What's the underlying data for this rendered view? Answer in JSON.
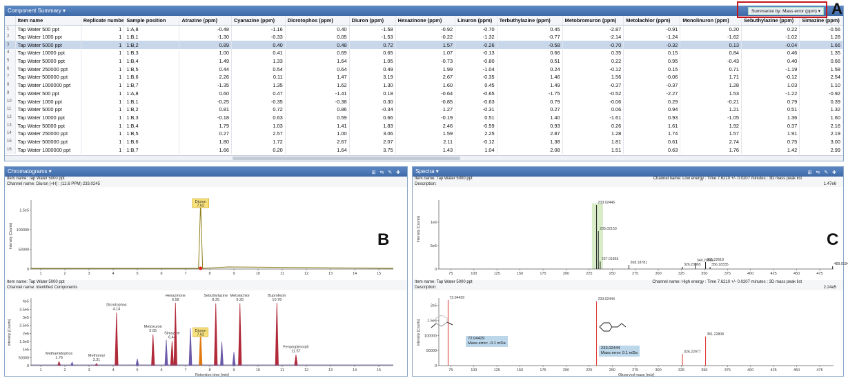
{
  "top": {
    "title": "Component Summary ▾",
    "summarize_label": "Summarize by: Mass error (ppm) ▾",
    "callout": "A",
    "columns": [
      "",
      "Item name",
      "Replicate number",
      "Sample position",
      "Atrazine (ppm)",
      "Cyanazine (ppm)",
      "Dicrotophos (ppm)",
      "Diuron (ppm)",
      "Hexazinone (ppm)",
      "Linuron (ppm)",
      "Terbuthylazine (ppm)",
      "Metobromuron (ppm)",
      "Metolachlor (ppm)",
      "Monolinuron (ppm)",
      "Sebuthylazine (ppm)",
      "Simazine (ppm)"
    ],
    "rows": [
      [
        "1",
        "Tap Water 500 ppt",
        "1",
        "1:A,8",
        "-0.48",
        "-1.16",
        "0.40",
        "-1.58",
        "-0.92",
        "-0.70",
        "0.45",
        "-2.87",
        "-0.91",
        "0.20",
        "0.22",
        "-0.56"
      ],
      [
        "2",
        "Tap Water 1000 ppt",
        "1",
        "1:B,1",
        "-1.30",
        "-0.33",
        "0.05",
        "-1.53",
        "-0.22",
        "-1.32",
        "-0.77",
        "-2.14",
        "-1.24",
        "-1.62",
        "-1.02",
        "1.28"
      ],
      [
        "3",
        "Tap Water 5000 ppt",
        "1",
        "1:B,2",
        "0.89",
        "0.40",
        "0.48",
        "0.72",
        "1.57",
        "-0.26",
        "-0.58",
        "-0.70",
        "-0.32",
        "0.13",
        "-0.04",
        "1.66"
      ],
      [
        "4",
        "Tap Water 10000 ppt",
        "1",
        "1:B,3",
        "1.00",
        "0.41",
        "0.69",
        "0.65",
        "1.07",
        "-0.13",
        "0.66",
        "0.35",
        "0.15",
        "0.84",
        "0.46",
        "1.35"
      ],
      [
        "5",
        "Tap Water 50000 ppt",
        "1",
        "1:B,4",
        "1.49",
        "1.33",
        "1.64",
        "1.05",
        "-0.73",
        "-0.80",
        "0.51",
        "0.22",
        "0.95",
        "-0.43",
        "0.40",
        "0.66"
      ],
      [
        "6",
        "Tap Water 250000 ppt",
        "1",
        "1:B,5",
        "0.44",
        "0.54",
        "0.64",
        "0.49",
        "1.99",
        "-1.04",
        "0.24",
        "-0.12",
        "0.15",
        "0.71",
        "-1.19",
        "1.58"
      ],
      [
        "7",
        "Tap Water 500000 ppt",
        "1",
        "1:B,6",
        "2.26",
        "0.11",
        "1.47",
        "3.19",
        "2.67",
        "-0.35",
        "1.46",
        "1.56",
        "-0.06",
        "1.71",
        "-0.12",
        "2.54"
      ],
      [
        "8",
        "Tap Water 1000000 ppt",
        "1",
        "1:B,7",
        "-1.35",
        "1.35",
        "1.62",
        "1.30",
        "1.60",
        "0.45",
        "1.49",
        "-0.37",
        "-0.37",
        "1.28",
        "1.03",
        "1.10"
      ],
      [
        "9",
        "Tap Water 500 ppt",
        "1",
        "1:A,8",
        "0.60",
        "0.47",
        "-1.41",
        "0.18",
        "-0.64",
        "-0.65",
        "-1.75",
        "-0.52",
        "-2.27",
        "1.53",
        "-1.22",
        "-0.92"
      ],
      [
        "10",
        "Tap Water 1000 ppt",
        "1",
        "1:B,1",
        "-0.25",
        "-0.35",
        "-0.38",
        "0.30",
        "-0.85",
        "-0.63",
        "0.79",
        "-0.06",
        "0.29",
        "-0.21",
        "0.79",
        "0.39"
      ],
      [
        "11",
        "Tap Water 5000 ppt",
        "1",
        "1:B,2",
        "0.81",
        "0.72",
        "0.86",
        "-0.34",
        "1.27",
        "-0.31",
        "0.27",
        "0.06",
        "0.94",
        "1.21",
        "0.51",
        "1.32"
      ],
      [
        "12",
        "Tap Water 10000 ppt",
        "1",
        "1:B,3",
        "-0.18",
        "0.63",
        "0.59",
        "0.66",
        "-0.19",
        "0.51",
        "1.40",
        "-1.61",
        "0.93",
        "-1.05",
        "1.36",
        "1.60"
      ],
      [
        "13",
        "Tap Water 50000 ppt",
        "1",
        "1:B,4",
        "1.79",
        "1.03",
        "1.41",
        "1.83",
        "2.46",
        "-0.59",
        "0.93",
        "0.26",
        "1.61",
        "1.92",
        "0.37",
        "2.16"
      ],
      [
        "14",
        "Tap Water 250000 ppt",
        "1",
        "1:B,5",
        "0.27",
        "2.57",
        "1.00",
        "3.06",
        "1.59",
        "2.25",
        "2.87",
        "1.28",
        "1.74",
        "1.57",
        "1.91",
        "2.19"
      ],
      [
        "15",
        "Tap Water 500000 ppt",
        "1",
        "1:B,6",
        "1.80",
        "1.72",
        "2.67",
        "2.07",
        "2.11",
        "-0.12",
        "1.38",
        "1.81",
        "0.61",
        "2.74",
        "0.75",
        "3.00"
      ],
      [
        "16",
        "Tap Water 1000000 ppt",
        "1",
        "1:B,7",
        "1.66",
        "0.20",
        "1.64",
        "3.75",
        "1.43",
        "1.04",
        "2.08",
        "1.51",
        "0.63",
        "1.76",
        "1.42",
        "2.99"
      ]
    ]
  },
  "chrom": {
    "title": "Chromatograms ▾",
    "callout": "B",
    "top_item": "Item name: Tap Water 5000 ppt",
    "top_channel": "Channel name: Diuron [+H] : (12.6 PPM) 233.0245",
    "bot_item": "Item name: Tap Water 5000 ppt",
    "bot_channel": "Channel name: Identified Components",
    "xlabel": "Retention time [min]",
    "ylabel": "Intensity [Counts]",
    "top_peak": {
      "name": "Diuron",
      "rt": "7.62"
    },
    "peaks": [
      {
        "name": "Methamidophos",
        "rt": "1.76",
        "h": 0.06
      },
      {
        "name": "Methomyl",
        "rt": "3.31",
        "h": 0.03
      },
      {
        "name": "Dicrotophos",
        "rt": "4.14",
        "h": 0.78
      },
      {
        "name": "Metoxuron",
        "rt": "5.65",
        "h": 0.46
      },
      {
        "name": "Simazine",
        "rt": "6.44",
        "h": 0.36
      },
      {
        "name": "Hexazinone",
        "rt": "6.58",
        "h": 0.93
      },
      {
        "name": "Diuron",
        "rt": "7.62",
        "h": 0.53
      },
      {
        "name": "Sebuthylazine",
        "rt": "8.25",
        "h": 0.92
      },
      {
        "name": "Metolachlor",
        "rt": "9.25",
        "h": 0.92
      },
      {
        "name": "Buprofezin",
        "rt": "10.78",
        "h": 0.93
      },
      {
        "name": "Fenpropimorph",
        "rt": "11.57",
        "h": 0.16
      }
    ]
  },
  "spec": {
    "title": "Spectra ▾",
    "callout": "C",
    "top_item": "Item name: Tap Water 5000 ppt",
    "top_desc": "Description:",
    "top_channel": "Channel name: Low energy : Time 7.6210 +/- 0.0207 minutes : 3D mass peak list",
    "top_max": "1.47e6",
    "bot_item": "Item name: Tap Water 5000 ppt",
    "bot_desc": "Description:",
    "bot_channel": "Channel name: High energy : Time 7.6210 +/- 0.0207 minutes : 3D mass peak list",
    "bot_max": "2.24e5",
    "xlabel": "Observed mass [m/z]",
    "ylabel": "Intensity [Counts]",
    "note1": [
      "72.04429",
      "Mass error: -0.1 mDa"
    ],
    "note2": [
      "233.02444",
      "Mass error: 0.1 mDa"
    ],
    "low_peaks": [
      {
        "mz": "233.02446",
        "v": 233.02,
        "h": 0.93
      },
      {
        "mz": "235.02153",
        "v": 235.02,
        "h": 0.55
      },
      {
        "mz": "237.01865",
        "v": 237.02,
        "h": 0.11
      },
      {
        "mz": "268.18781",
        "v": 268.19,
        "h": 0.06
      },
      {
        "mz": "326.23065",
        "v": 326.23,
        "h": 0.03
      },
      {
        "mz": "340.20926",
        "v": 340.21,
        "h": 0.09
      },
      {
        "mz": "351.22618",
        "v": 351.23,
        "h": 0.1
      },
      {
        "mz": "356.18335",
        "v": 356.18,
        "h": 0.03
      },
      {
        "mz": "489.01942",
        "v": 489.02,
        "h": 0.04
      }
    ],
    "high_peaks": [
      {
        "mz": "72.04429",
        "v": 72.04,
        "h": 0.97
      },
      {
        "mz": "233.02444",
        "v": 233.02,
        "h": 0.95
      },
      {
        "mz": "326.22977",
        "v": 326.23,
        "h": 0.17
      },
      {
        "mz": "351.22808",
        "v": 351.23,
        "h": 0.43
      }
    ]
  }
}
